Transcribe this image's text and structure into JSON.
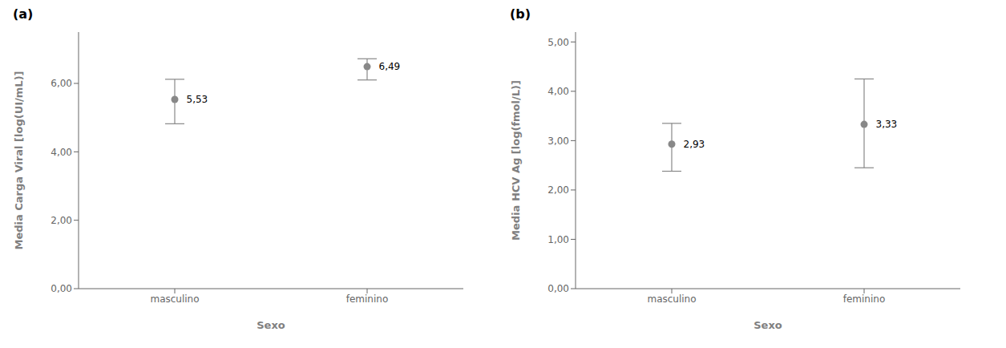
{
  "chart_data": [
    {
      "type": "scatter",
      "title": "(a)",
      "categories": [
        "masculino",
        "feminino"
      ],
      "values": [
        5.53,
        6.49
      ],
      "value_labels": [
        "5,53",
        "6,49"
      ],
      "ci_lower": [
        4.82,
        6.1
      ],
      "ci_upper": [
        6.12,
        6.72
      ],
      "xlabel": "Sexo",
      "ylabel": "Media Carga Viral [log(UI/mL)]",
      "ylim": [
        0,
        7.5
      ],
      "yticks": [
        {
          "value": 0.0,
          "label": "0,00"
        },
        {
          "value": 2.0,
          "label": "2,00"
        },
        {
          "value": 4.0,
          "label": "4,00"
        },
        {
          "value": 6.0,
          "label": "6,00"
        }
      ],
      "color": "#888888",
      "data_labels": true,
      "grid": false
    },
    {
      "type": "scatter",
      "title": "(b)",
      "categories": [
        "masculino",
        "feminino"
      ],
      "values": [
        2.93,
        3.33
      ],
      "value_labels": [
        "2,93",
        "3,33"
      ],
      "ci_lower": [
        2.38,
        2.45
      ],
      "ci_upper": [
        3.35,
        4.25
      ],
      "xlabel": "Sexo",
      "ylabel": "Media HCV Ag [log(fmol/L)]",
      "ylim": [
        0,
        5.2
      ],
      "yticks": [
        {
          "value": 0.0,
          "label": "0,00"
        },
        {
          "value": 1.0,
          "label": "1,00"
        },
        {
          "value": 2.0,
          "label": "2,00"
        },
        {
          "value": 3.0,
          "label": "3,00"
        },
        {
          "value": 4.0,
          "label": "4,00"
        },
        {
          "value": 5.0,
          "label": "5,00"
        }
      ],
      "color": "#888888",
      "data_labels": true,
      "grid": false
    }
  ]
}
